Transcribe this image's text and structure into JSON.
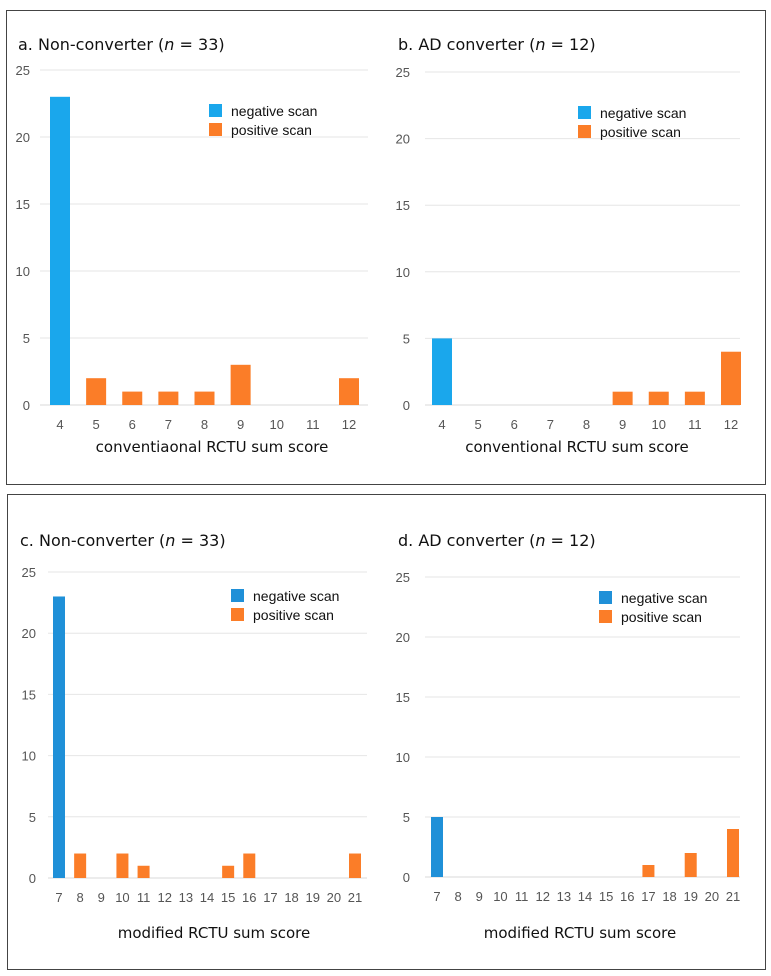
{
  "chart_data": [
    {
      "type": "bar",
      "title_prefix": "a. Non-converter (",
      "title_n": "n",
      "title_suffix": " = 33)",
      "xlabel": "conventiaonal RCTU sum score",
      "ylabel": "",
      "ylim": [
        0,
        25
      ],
      "yticks": [
        0,
        5,
        10,
        15,
        20,
        25
      ],
      "grid": true,
      "legend": "top-right",
      "categories": [
        "4",
        "5",
        "6",
        "7",
        "8",
        "9",
        "10",
        "11",
        "12"
      ],
      "series": [
        {
          "name": "negative scan",
          "color": "#1aa7ec",
          "values": [
            23,
            0,
            0,
            0,
            0,
            0,
            0,
            0,
            0
          ]
        },
        {
          "name": "positive scan",
          "color": "#fb7d28",
          "values": [
            0,
            2,
            1,
            1,
            1,
            3,
            0,
            0,
            2
          ]
        }
      ]
    },
    {
      "type": "bar",
      "title_prefix": "b. AD converter (",
      "title_n": "n",
      "title_suffix": " = 12)",
      "xlabel": "conventional RCTU sum score",
      "ylabel": "",
      "ylim": [
        0,
        25
      ],
      "yticks": [
        0,
        5,
        10,
        15,
        20,
        25
      ],
      "grid": true,
      "legend": "top-right",
      "categories": [
        "4",
        "5",
        "6",
        "7",
        "8",
        "9",
        "10",
        "11",
        "12"
      ],
      "series": [
        {
          "name": "negative scan",
          "color": "#1aa7ec",
          "values": [
            5,
            0,
            0,
            0,
            0,
            0,
            0,
            0,
            0
          ]
        },
        {
          "name": "positive scan",
          "color": "#fb7d28",
          "values": [
            0,
            0,
            0,
            0,
            0,
            1,
            1,
            1,
            4
          ]
        }
      ]
    },
    {
      "type": "bar",
      "title_prefix": "c. Non-converter (",
      "title_n": "n",
      "title_suffix": " = 33)",
      "xlabel": "modified RCTU sum score",
      "ylabel": "",
      "ylim": [
        0,
        25
      ],
      "yticks": [
        0,
        5,
        10,
        15,
        20,
        25
      ],
      "grid": true,
      "legend": "top-right",
      "categories": [
        "7",
        "8",
        "9",
        "10",
        "11",
        "12",
        "13",
        "14",
        "15",
        "16",
        "17",
        "18",
        "19",
        "20",
        "21"
      ],
      "series": [
        {
          "name": "negative scan",
          "color": "#1f90d8",
          "values": [
            23,
            0,
            0,
            0,
            0,
            0,
            0,
            0,
            0,
            0,
            0,
            0,
            0,
            0,
            0
          ]
        },
        {
          "name": "positive scan",
          "color": "#fb7d28",
          "values": [
            0,
            2,
            0,
            2,
            1,
            0,
            0,
            0,
            1,
            2,
            0,
            0,
            0,
            0,
            2
          ]
        }
      ]
    },
    {
      "type": "bar",
      "title_prefix": "d. AD converter (",
      "title_n": "n",
      "title_suffix": " = 12)",
      "xlabel": "modified RCTU sum score",
      "ylabel": "",
      "ylim": [
        0,
        25
      ],
      "yticks": [
        0,
        5,
        10,
        15,
        20,
        25
      ],
      "grid": true,
      "legend": "top-right",
      "categories": [
        "7",
        "8",
        "9",
        "10",
        "11",
        "12",
        "13",
        "14",
        "15",
        "16",
        "17",
        "18",
        "19",
        "20",
        "21"
      ],
      "series": [
        {
          "name": "negative scan",
          "color": "#1f90d8",
          "values": [
            5,
            0,
            0,
            0,
            0,
            0,
            0,
            0,
            0,
            0,
            0,
            0,
            0,
            0,
            0
          ]
        },
        {
          "name": "positive scan",
          "color": "#fb7d28",
          "values": [
            0,
            0,
            0,
            0,
            0,
            0,
            0,
            0,
            0,
            0,
            1,
            0,
            2,
            0,
            4
          ]
        }
      ]
    }
  ]
}
